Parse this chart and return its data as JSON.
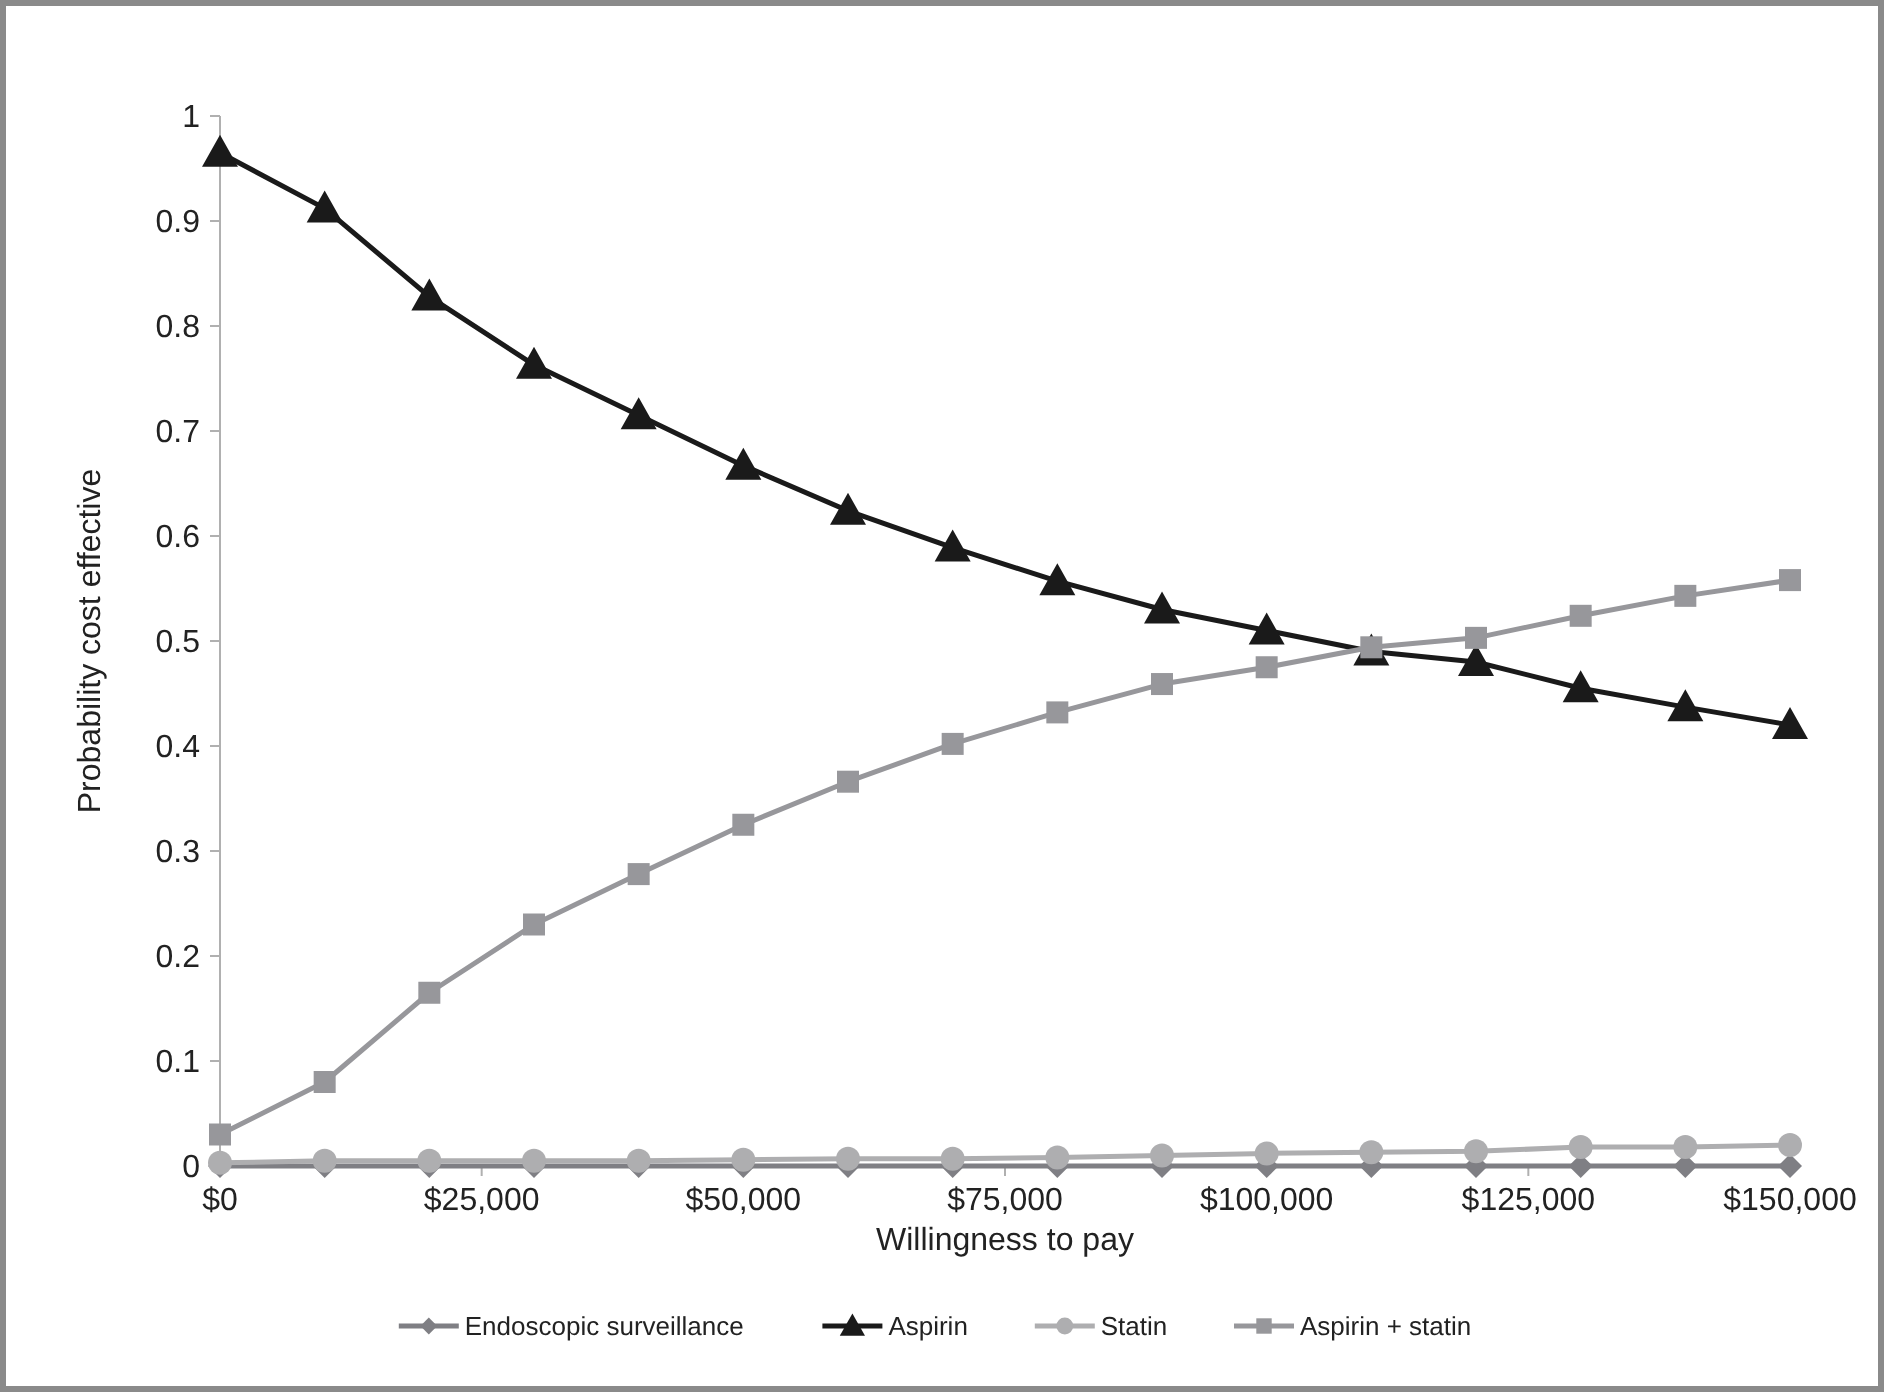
{
  "chart_data": {
    "type": "line",
    "xlabel": "Willingness to pay",
    "ylabel": "Probability cost effective",
    "x": [
      0,
      10000,
      20000,
      30000,
      40000,
      50000,
      60000,
      70000,
      80000,
      90000,
      100000,
      110000,
      120000,
      130000,
      140000,
      150000
    ],
    "xlim": [
      0,
      150000
    ],
    "xticks": [
      {
        "value": 0,
        "label": "$0"
      },
      {
        "value": 25000,
        "label": "$25,000"
      },
      {
        "value": 50000,
        "label": "$50,000"
      },
      {
        "value": 75000,
        "label": "$75,000"
      },
      {
        "value": 100000,
        "label": "$100,000"
      },
      {
        "value": 125000,
        "label": "$125,000"
      },
      {
        "value": 150000,
        "label": "$150,000"
      }
    ],
    "ylim": [
      0,
      1
    ],
    "yticks": [
      0,
      0.1,
      0.2,
      0.3,
      0.4,
      0.5,
      0.6,
      0.7,
      0.8,
      0.9,
      1
    ],
    "legend": "bottom",
    "grid": false,
    "line_style": "solid",
    "series": [
      {
        "name": "Endoscopic surveillance",
        "color": "#7f7f84",
        "marker": "diamond",
        "values": [
          0,
          0,
          0,
          0,
          0,
          0,
          0,
          0,
          0,
          0,
          0,
          0,
          0,
          0,
          0,
          0
        ]
      },
      {
        "name": "Aspirin",
        "color": "#1a1a1a",
        "marker": "triangle",
        "values": [
          0.965,
          0.912,
          0.828,
          0.763,
          0.715,
          0.667,
          0.624,
          0.589,
          0.557,
          0.53,
          0.51,
          0.49,
          0.48,
          0.455,
          0.437,
          0.42
        ]
      },
      {
        "name": "Statin",
        "color": "#aeaeb0",
        "marker": "circle",
        "values": [
          0.003,
          0.005,
          0.005,
          0.005,
          0.005,
          0.006,
          0.007,
          0.007,
          0.008,
          0.01,
          0.012,
          0.013,
          0.014,
          0.018,
          0.018,
          0.02
        ]
      },
      {
        "name": "Aspirin + statin",
        "color": "#97979b",
        "marker": "square",
        "values": [
          0.03,
          0.08,
          0.165,
          0.23,
          0.278,
          0.325,
          0.366,
          0.402,
          0.432,
          0.459,
          0.475,
          0.494,
          0.503,
          0.524,
          0.543,
          0.558
        ]
      }
    ]
  }
}
